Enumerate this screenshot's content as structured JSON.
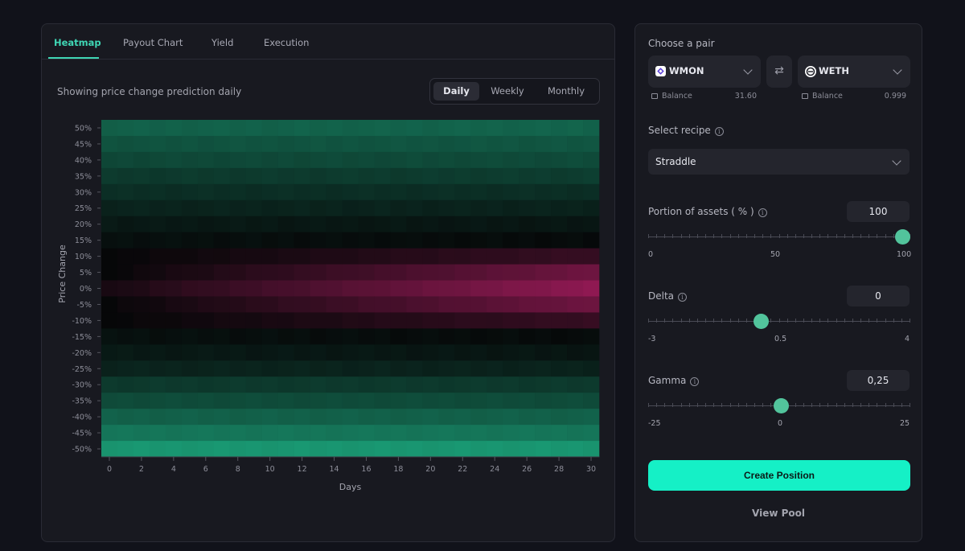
{
  "tabs": [
    {
      "label": "Heatmap",
      "active": true
    },
    {
      "label": "Payout Chart",
      "active": false
    },
    {
      "label": "Yield",
      "active": false
    },
    {
      "label": "Execution",
      "active": false
    }
  ],
  "heatmap_header": {
    "subtitle": "Showing price change prediction daily",
    "periods": [
      {
        "label": "Daily",
        "active": true
      },
      {
        "label": "Weekly",
        "active": false
      },
      {
        "label": "Monthly",
        "active": false
      }
    ]
  },
  "chart_data": {
    "type": "heatmap",
    "title": "",
    "xlabel": "Days",
    "ylabel": "Price Change",
    "x_ticks": [
      0,
      2,
      4,
      6,
      8,
      10,
      12,
      14,
      16,
      18,
      20,
      22,
      24,
      26,
      28,
      30
    ],
    "xlim": [
      0,
      31
    ],
    "y_ticks": [
      "50%",
      "45%",
      "40%",
      "35%",
      "30%",
      "25%",
      "20%",
      "15%",
      "10%",
      "5%",
      "0%",
      "-5%",
      "-10%",
      "-15%",
      "-20%",
      "-25%",
      "-30%",
      "-35%",
      "-40%",
      "-45%",
      "-50%"
    ],
    "y_values": [
      50,
      45,
      40,
      35,
      30,
      25,
      20,
      15,
      10,
      5,
      0,
      -5,
      -10,
      -15,
      -20,
      -25,
      -30,
      -35,
      -40,
      -45,
      -50
    ],
    "days": 31,
    "row_profiles": [
      {
        "start": 0.5,
        "end": 0.52
      },
      {
        "start": 0.42,
        "end": 0.44
      },
      {
        "start": 0.36,
        "end": 0.38
      },
      {
        "start": 0.28,
        "end": 0.3
      },
      {
        "start": 0.22,
        "end": 0.22
      },
      {
        "start": 0.16,
        "end": 0.15
      },
      {
        "start": 0.1,
        "end": 0.08
      },
      {
        "start": 0.05,
        "end": 0.02
      },
      {
        "start": 0.0,
        "end": -0.3
      },
      {
        "start": 0.0,
        "end": -0.65
      },
      {
        "start": -0.1,
        "end": -0.85
      },
      {
        "start": 0.0,
        "end": -0.65
      },
      {
        "start": 0.0,
        "end": -0.3
      },
      {
        "start": 0.05,
        "end": 0.02
      },
      {
        "start": 0.1,
        "end": 0.08
      },
      {
        "start": 0.16,
        "end": 0.15
      },
      {
        "start": 0.28,
        "end": 0.28
      },
      {
        "start": 0.38,
        "end": 0.38
      },
      {
        "start": 0.5,
        "end": 0.5
      },
      {
        "start": 0.62,
        "end": 0.62
      },
      {
        "start": 0.8,
        "end": 0.8
      }
    ],
    "positive_color": "#1eb98a",
    "negative_color": "#a51c5e",
    "grid": false
  },
  "pair": {
    "heading": "Choose a pair",
    "token_a": {
      "symbol": "WMON",
      "balance_label": "Balance",
      "balance": "31.60"
    },
    "token_b": {
      "symbol": "WETH",
      "balance_label": "Balance",
      "balance": "0.999"
    },
    "swap_icon": "⇄"
  },
  "recipe": {
    "heading": "Select recipe",
    "value": "Straddle"
  },
  "sliders": [
    {
      "label": "Portion of assets ( % )",
      "value": "100",
      "min": 0,
      "max": 100,
      "current": 100,
      "labels": [
        "0",
        "50",
        "100"
      ]
    },
    {
      "label": "Delta",
      "value": "0",
      "min": -3,
      "max": 4,
      "current": 0,
      "labels": [
        "-3",
        "0.5",
        "4"
      ]
    },
    {
      "label": "Gamma",
      "value": "0,25",
      "min": -25,
      "max": 25,
      "current": 0.25,
      "labels": [
        "-25",
        "0",
        "25"
      ]
    }
  ],
  "actions": {
    "create": "Create Position",
    "view_pool": "View Pool"
  },
  "colors": {
    "accent": "#15f0c6",
    "tab_active": "#3fd6b4",
    "thumb": "#52c49c"
  }
}
